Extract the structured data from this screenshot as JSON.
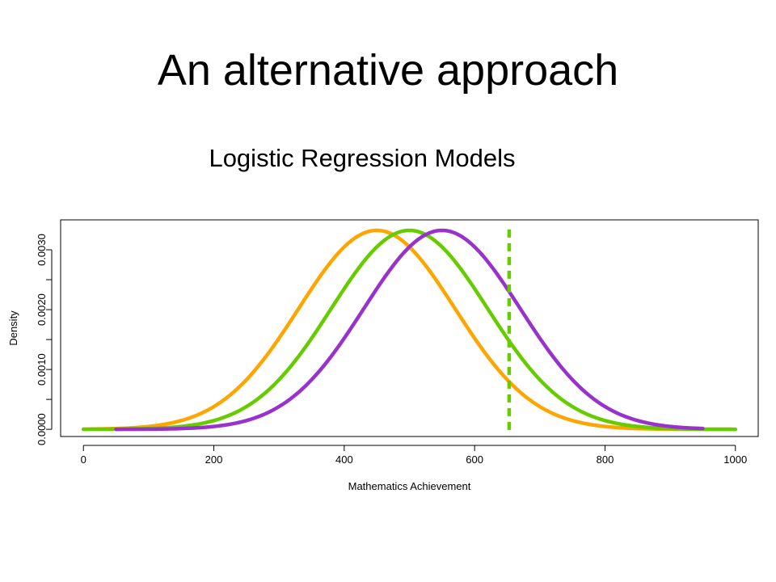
{
  "slide": {
    "title": "An alternative approach",
    "subtitle": "Logistic Regression Models"
  },
  "chart_data": {
    "type": "line",
    "title": "",
    "xlabel": "Mathematics Achievement",
    "ylabel": "Density",
    "xlim": [
      -35,
      1035
    ],
    "ylim": [
      -0.00012,
      0.0035
    ],
    "x_ticks": [
      0,
      200,
      400,
      600,
      800,
      1000
    ],
    "x_tick_labels": [
      "0",
      "200",
      "400",
      "600",
      "800",
      "1000"
    ],
    "y_ticks": [
      0,
      0.001,
      0.002,
      0.003
    ],
    "y_tick_labels": [
      "0.0000",
      "0.0010",
      "0.0020",
      "0.0030"
    ],
    "y_minor_ticks": [
      0.0005,
      0.0015,
      0.0025
    ],
    "grid": false,
    "legend": "none",
    "series": [
      {
        "distribution": "normal",
        "mean": 450,
        "sd": 120,
        "x_range": [
          0,
          1000
        ],
        "color": "#ffa500"
      },
      {
        "distribution": "normal",
        "mean": 500,
        "sd": 120,
        "x_range": [
          0,
          1000
        ],
        "color": "#66cc00"
      },
      {
        "distribution": "normal",
        "mean": 550,
        "sd": 120,
        "x_range": [
          50,
          950
        ],
        "color": "#9932cc"
      }
    ],
    "vertical_line": {
      "x": 653,
      "style": "dashed",
      "color": "#66cc00"
    }
  }
}
